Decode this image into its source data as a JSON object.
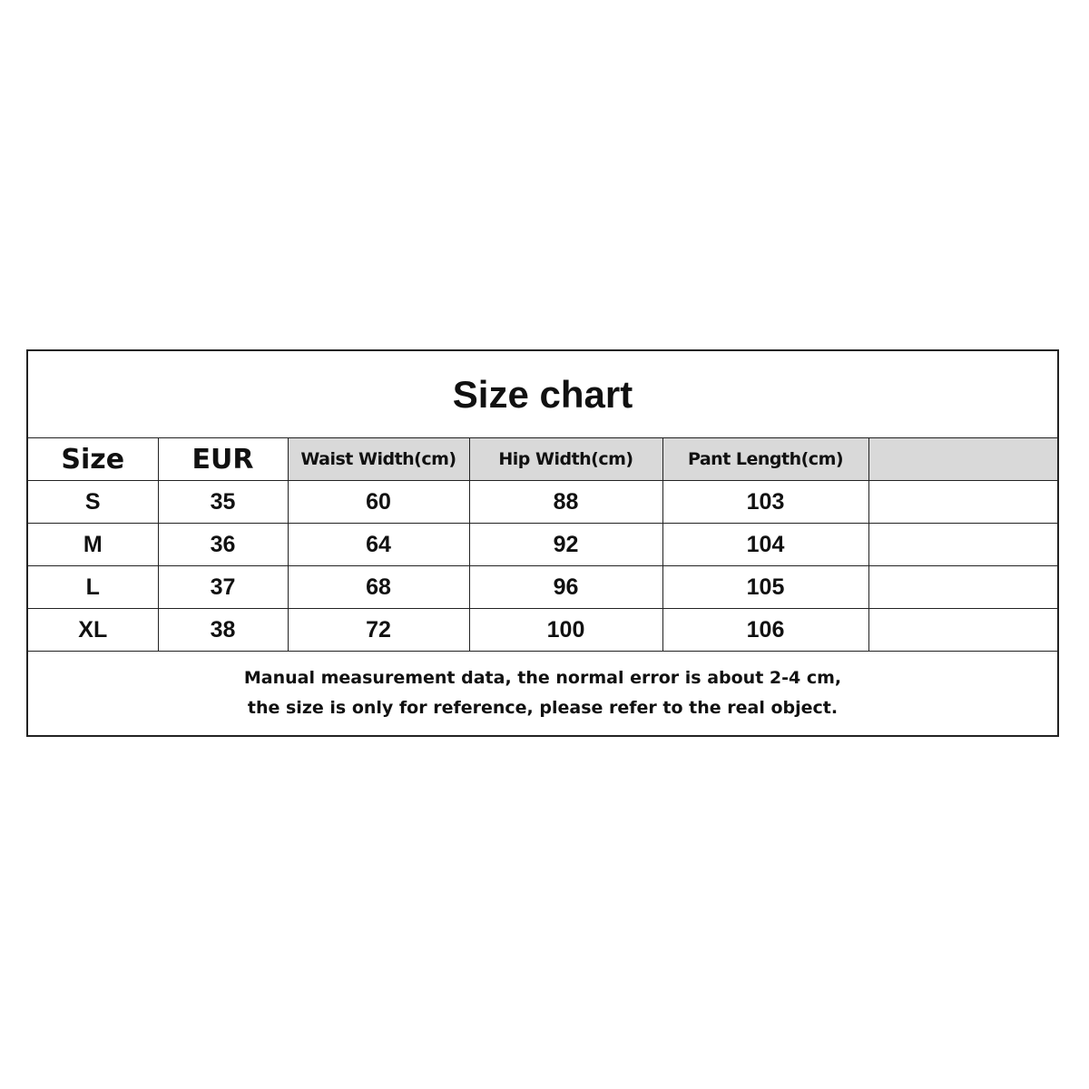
{
  "title": "Size chart",
  "headers": [
    "Size",
    "EUR",
    "Waist Width(cm)",
    "Hip Width(cm)",
    "Pant Length(cm)",
    ""
  ],
  "rows": [
    [
      "S",
      "35",
      "60",
      "88",
      "103",
      ""
    ],
    [
      "M",
      "36",
      "64",
      "92",
      "104",
      ""
    ],
    [
      "L",
      "37",
      "68",
      "96",
      "105",
      ""
    ],
    [
      "XL",
      "38",
      "72",
      "100",
      "106",
      ""
    ]
  ],
  "note": {
    "line1": "Manual measurement data, the normal error is about 2-4 cm,",
    "line2": "the size is only for reference, please refer to the real object."
  },
  "colors": {
    "header_gray": "#d9d9d9",
    "border": "#222222"
  }
}
